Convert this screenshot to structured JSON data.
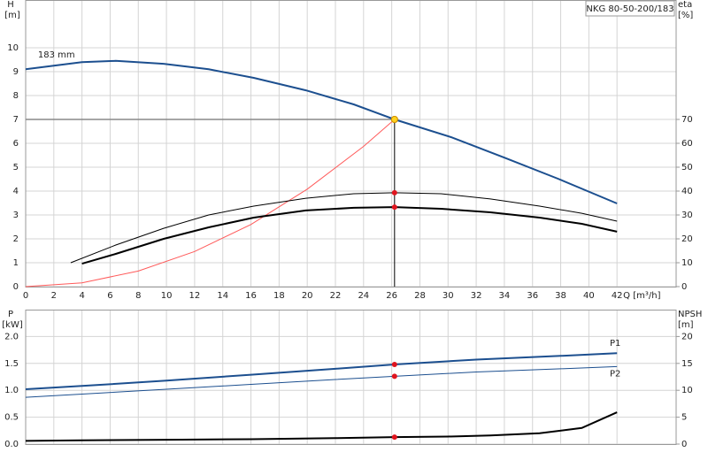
{
  "chart_data": [
    {
      "type": "line",
      "title": "NKG 80-50-200/183",
      "y_label": "H",
      "y_unit": "[m]",
      "y2_label": "eta",
      "y2_unit": "[%]",
      "x_label": "Q [m³/h]",
      "xlim": [
        0,
        46.2
      ],
      "xticks": [
        0,
        2,
        4,
        6,
        8,
        10,
        12,
        14,
        16,
        18,
        20,
        22,
        24,
        26,
        28,
        30,
        32,
        34,
        36,
        38,
        40,
        42
      ],
      "ylim": [
        0,
        12
      ],
      "yticks": [
        0,
        1,
        2,
        3,
        4,
        5,
        6,
        7,
        8,
        9,
        10
      ],
      "y2lim": [
        0,
        120
      ],
      "y2ticks": [
        0,
        10,
        20,
        30,
        40,
        50,
        60,
        70
      ],
      "grid": true,
      "duty_point": {
        "x": 26.2,
        "y": 7.0
      },
      "series": [
        {
          "name": "183 mm",
          "color": "#1c4f8f",
          "line_width": 2,
          "x": [
            0,
            4,
            6.4,
            9.8,
            13,
            16.2,
            19.9,
            23.3,
            26.2,
            30.2,
            34,
            37.8,
            42
          ],
          "values": [
            9.1,
            9.4,
            9.45,
            9.33,
            9.1,
            8.74,
            8.22,
            7.63,
            7.0,
            6.26,
            5.4,
            4.52,
            3.48
          ]
        },
        {
          "color": "#ff5a5a",
          "line_width": 1,
          "x": [
            0,
            4,
            8,
            12,
            16,
            20,
            24,
            26.2
          ],
          "values": [
            0,
            0.16,
            0.65,
            1.47,
            2.6,
            4.08,
            5.87,
            7.0
          ]
        },
        {
          "color": "#000000",
          "line_width": 1,
          "axis": "y2",
          "x": [
            3.2,
            6.4,
            9.8,
            13,
            16.2,
            19.9,
            23.3,
            26.2,
            29.5,
            33,
            36.5,
            39.5,
            42
          ],
          "values": [
            10,
            17.4,
            24.4,
            30,
            33.7,
            37,
            38.9,
            39.3,
            38.9,
            36.7,
            33.7,
            30.7,
            27.4
          ]
        },
        {
          "color": "#000000",
          "line_width": 2,
          "axis": "y2",
          "x": [
            4,
            6.4,
            9.8,
            13,
            16.2,
            19.9,
            23.3,
            26.2,
            29.5,
            33,
            36.5,
            39.5,
            42
          ],
          "values": [
            9.6,
            13.7,
            20,
            24.8,
            28.9,
            31.9,
            33,
            33.3,
            32.6,
            31.1,
            28.9,
            26.3,
            23
          ]
        }
      ]
    },
    {
      "type": "line",
      "y_label": "P",
      "y_unit": "[kW]",
      "y2_label": "NPSH",
      "y2_unit": "[m]",
      "xlim": [
        0,
        46.2
      ],
      "xticks": [
        0,
        2,
        4,
        6,
        8,
        10,
        12,
        14,
        16,
        18,
        20,
        22,
        24,
        26,
        28,
        30,
        32,
        34,
        36,
        38,
        40,
        42
      ],
      "ylim": [
        0,
        2.5
      ],
      "yticks": [
        {
          "value": 0,
          "label": "0.0"
        },
        0.5,
        {
          "value": 1,
          "label": "1.0"
        },
        1.5,
        {
          "value": 2,
          "label": "2.0"
        }
      ],
      "y2lim": [
        0,
        25
      ],
      "y2ticks": [
        0,
        5,
        10,
        15,
        20
      ],
      "grid": true,
      "series": [
        {
          "name": "P1",
          "color": "#1c4f8f",
          "line_width": 2,
          "x": [
            0,
            4,
            10,
            16,
            22,
            26.2,
            32,
            38,
            42
          ],
          "values": [
            1.02,
            1.08,
            1.18,
            1.29,
            1.4,
            1.48,
            1.57,
            1.64,
            1.69
          ]
        },
        {
          "name": "P2",
          "color": "#1c4f8f",
          "line_width": 1,
          "x": [
            0,
            4,
            10,
            16,
            22,
            26.2,
            32,
            38,
            42
          ],
          "values": [
            0.87,
            0.93,
            1.02,
            1.11,
            1.2,
            1.26,
            1.34,
            1.4,
            1.44
          ]
        },
        {
          "color": "#000000",
          "line_width": 2,
          "axis": "y2",
          "x": [
            0,
            4,
            10,
            16,
            22,
            26.2,
            30,
            33,
            36.5,
            39.5,
            42
          ],
          "values": [
            0.6,
            0.7,
            0.8,
            0.9,
            1.1,
            1.3,
            1.4,
            1.6,
            2,
            3,
            5.9
          ]
        }
      ]
    }
  ]
}
